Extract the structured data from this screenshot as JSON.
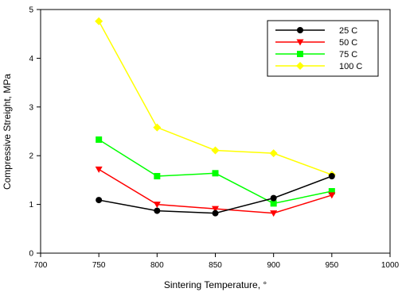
{
  "chart_data": {
    "type": "line",
    "title": "",
    "xlabel": "Sintering Temperature, °",
    "ylabel": "Compressive Streight, MPa",
    "xlim": [
      700,
      1000
    ],
    "ylim": [
      0,
      5
    ],
    "x_ticks": [
      700,
      750,
      800,
      850,
      900,
      950,
      1000
    ],
    "y_ticks": [
      0,
      1,
      2,
      3,
      4,
      5
    ],
    "grid": false,
    "legend_position": "top-right",
    "x": [
      750,
      800,
      850,
      900,
      950
    ],
    "series": [
      {
        "name": "25 C",
        "values": [
          1.09,
          0.87,
          0.82,
          1.13,
          1.58
        ],
        "color": "#000000",
        "marker": "circle"
      },
      {
        "name": "50 C",
        "values": [
          1.72,
          1.0,
          0.91,
          0.82,
          1.19
        ],
        "color": "#ff0000",
        "marker": "triangle-down"
      },
      {
        "name": "75 C",
        "values": [
          2.33,
          1.58,
          1.64,
          1.02,
          1.27
        ],
        "color": "#00ff00",
        "marker": "square"
      },
      {
        "name": "100 C",
        "values": [
          4.76,
          2.58,
          2.11,
          2.05,
          1.61
        ],
        "color": "#ffff00",
        "marker": "diamond"
      }
    ]
  }
}
